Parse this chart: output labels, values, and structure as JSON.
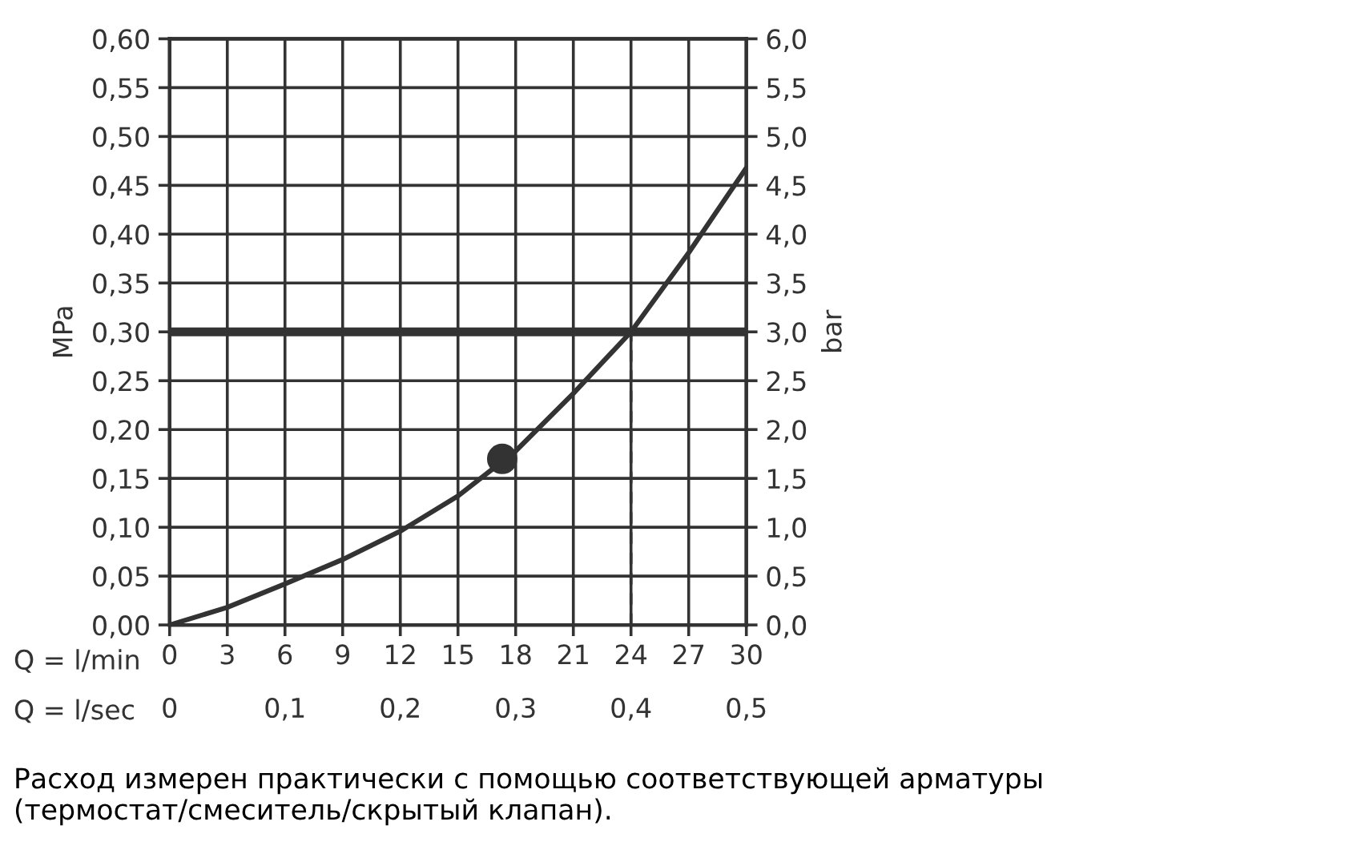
{
  "chart_data": {
    "type": "line",
    "xlabel": "Q = l/min",
    "x2label": "Q = l/sec",
    "ylabel": "MPa",
    "y2label": "bar",
    "xlim": [
      0,
      30
    ],
    "xticks": [
      0,
      3,
      6,
      9,
      12,
      15,
      18,
      21,
      24,
      27,
      30
    ],
    "x2lim": [
      0,
      0.5
    ],
    "x2ticks": [
      0,
      {
        "value": 0.1,
        "label": "0,1"
      },
      {
        "value": 0.2,
        "label": "0,2"
      },
      {
        "value": 0.3,
        "label": "0,3"
      },
      {
        "value": 0.4,
        "label": "0,4"
      },
      {
        "value": 0.5,
        "label": "0,5"
      }
    ],
    "ylim": [
      0,
      0.6
    ],
    "yticks": [
      {
        "value": 0,
        "label": "0,00"
      },
      {
        "value": 0.05,
        "label": "0,05"
      },
      {
        "value": 0.1,
        "label": "0,10"
      },
      {
        "value": 0.15,
        "label": "0,15"
      },
      {
        "value": 0.2,
        "label": "0,20"
      },
      {
        "value": 0.25,
        "label": "0,25"
      },
      {
        "value": 0.3,
        "label": "0,30"
      },
      {
        "value": 0.35,
        "label": "0,35"
      },
      {
        "value": 0.4,
        "label": "0,40"
      },
      {
        "value": 0.45,
        "label": "0,45"
      },
      {
        "value": 0.5,
        "label": "0,50"
      },
      {
        "value": 0.55,
        "label": "0,55"
      },
      {
        "value": 0.6,
        "label": "0,60"
      }
    ],
    "y2lim": [
      0,
      6
    ],
    "y2ticks": [
      {
        "value": 0,
        "label": "0,0"
      },
      {
        "value": 0.5,
        "label": "0,5"
      },
      {
        "value": 1,
        "label": "1,0"
      },
      {
        "value": 1.5,
        "label": "1,5"
      },
      {
        "value": 2,
        "label": "2,0"
      },
      {
        "value": 2.5,
        "label": "2,5"
      },
      {
        "value": 3,
        "label": "3,0"
      },
      {
        "value": 3.5,
        "label": "3,5"
      },
      {
        "value": 4,
        "label": "4,0"
      },
      {
        "value": 4.5,
        "label": "4,5"
      },
      {
        "value": 5,
        "label": "5,0"
      },
      {
        "value": 5.5,
        "label": "5,5"
      },
      {
        "value": 6,
        "label": "6,0"
      }
    ],
    "grid": true,
    "series": [
      {
        "color": "#333333",
        "x": [
          0,
          3,
          6,
          9,
          12,
          15,
          18,
          21,
          24,
          27,
          30
        ],
        "values": [
          0,
          0.018,
          0.042,
          0.067,
          0.096,
          0.132,
          0.178,
          0.237,
          0.3,
          0.381,
          0.468
        ]
      },
      {
        "type": "line",
        "color": "#333333",
        "line_style": "dashed",
        "x": [
          24,
          24
        ],
        "values": [
          0,
          0.3
        ]
      },
      {
        "type": "scatter",
        "color": "#333333",
        "marker": "circle",
        "x": [
          17.3
        ],
        "values": [
          0.17
        ]
      }
    ],
    "ref_lines": [
      {
        "axis": "y",
        "value": 0.3,
        "color": "#333333"
      }
    ],
    "annotations": [
      "Расход измерен практически с помощью соответствующей арматуры (термостат/смеситель/скрытый клапан)."
    ]
  }
}
